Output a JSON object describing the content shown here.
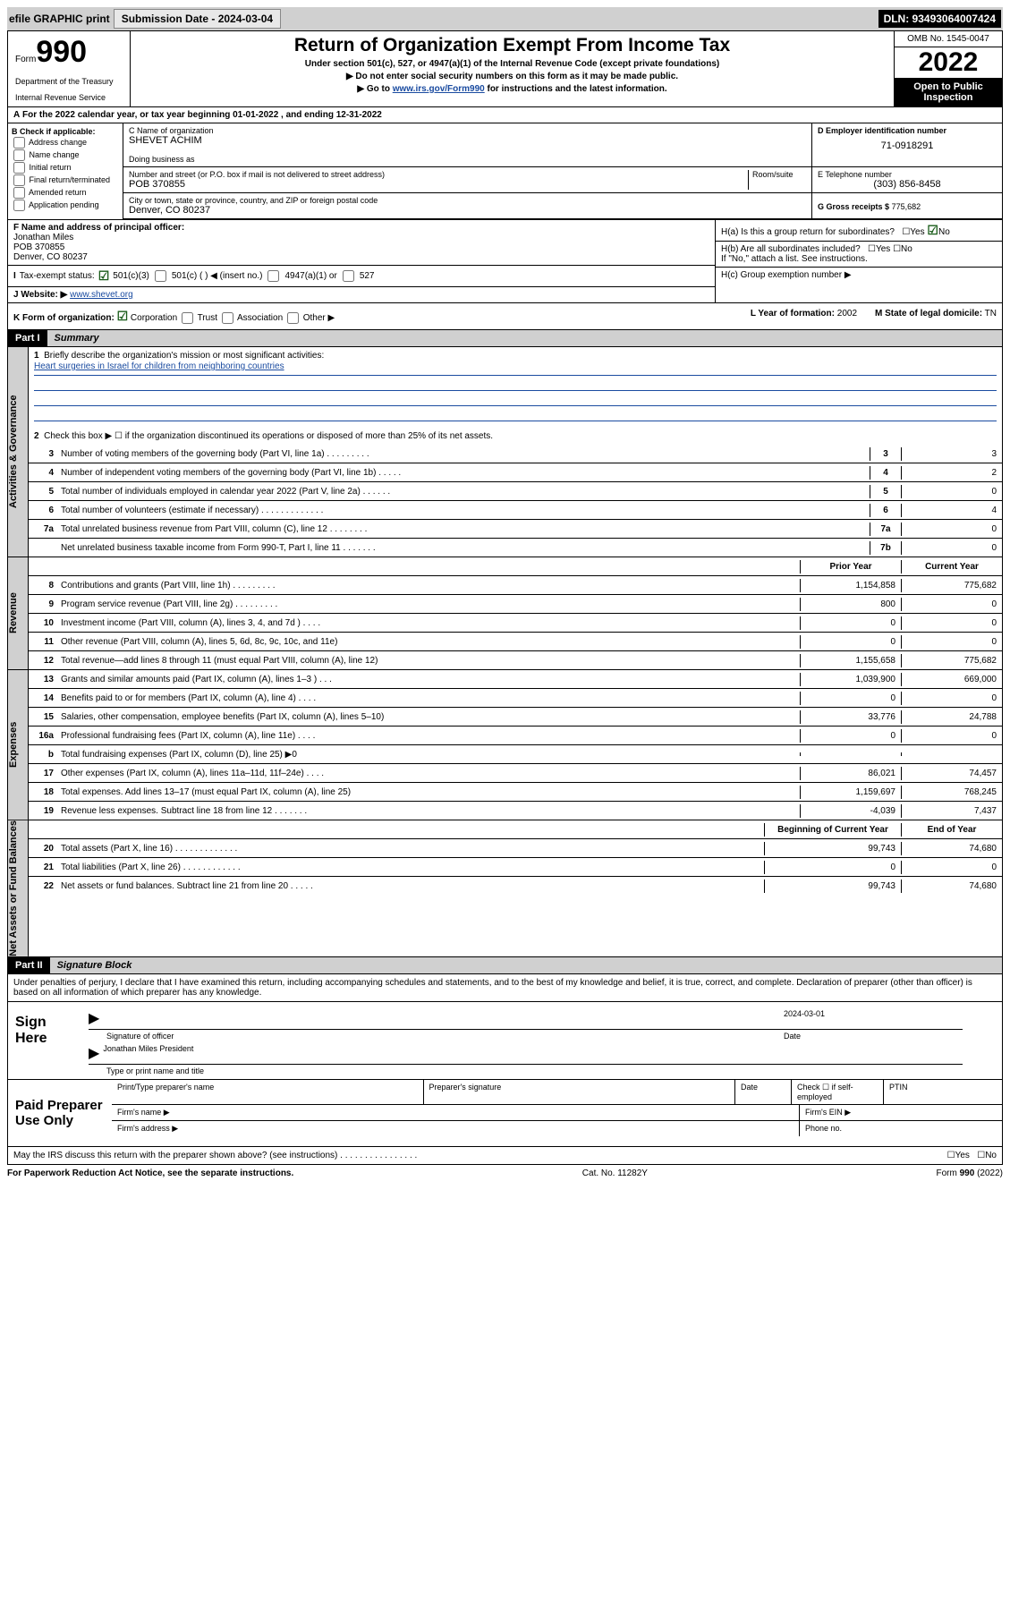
{
  "topbar": {
    "efile": "efile GRAPHIC print",
    "submission": "Submission Date - 2024-03-04",
    "dln": "DLN: 93493064007424"
  },
  "header": {
    "form_prefix": "Form",
    "form_number": "990",
    "dept": "Department of the Treasury",
    "irs": "Internal Revenue Service",
    "title": "Return of Organization Exempt From Income Tax",
    "subtitle1": "Under section 501(c), 527, or 4947(a)(1) of the Internal Revenue Code (except private foundations)",
    "subtitle2": "▶ Do not enter social security numbers on this form as it may be made public.",
    "subtitle3_prefix": "▶ Go to ",
    "subtitle3_link": "www.irs.gov/Form990",
    "subtitle3_suffix": " for instructions and the latest information.",
    "omb": "OMB No. 1545-0047",
    "year": "2022",
    "open": "Open to Public Inspection"
  },
  "row_a": "For the 2022 calendar year, or tax year beginning 01-01-2022  , and ending 12-31-2022",
  "section_b": {
    "header": "B Check if applicable:",
    "opts": [
      "Address change",
      "Name change",
      "Initial return",
      "Final return/terminated",
      "Amended return",
      "Application pending"
    ]
  },
  "section_c": {
    "name_label": "C Name of organization",
    "name": "SHEVET ACHIM",
    "dba_label": "Doing business as",
    "addr_label": "Number and street (or P.O. box if mail is not delivered to street address)",
    "suite_label": "Room/suite",
    "addr": "POB 370855",
    "city_label": "City or town, state or province, country, and ZIP or foreign postal code",
    "city": "Denver, CO  80237"
  },
  "section_d": {
    "label": "D Employer identification number",
    "val": "71-0918291"
  },
  "section_e": {
    "label": "E Telephone number",
    "val": "(303) 856-8458"
  },
  "section_g": {
    "label": "G Gross receipts $",
    "val": "775,682"
  },
  "section_f": {
    "label": "F Name and address of principal officer:",
    "name": "Jonathan Miles",
    "addr1": "POB 370855",
    "addr2": "Denver, CO  80237"
  },
  "section_h": {
    "a": "H(a)  Is this a group return for subordinates?",
    "b": "H(b)  Are all subordinates included?",
    "b_note": "If \"No,\" attach a list. See instructions.",
    "c": "H(c)  Group exemption number ▶"
  },
  "section_i": {
    "label": "Tax-exempt status:",
    "opt1": "501(c)(3)",
    "opt2": "501(c) (  ) ◀ (insert no.)",
    "opt3": "4947(a)(1) or",
    "opt4": "527"
  },
  "section_j": {
    "label": "Website: ▶",
    "val": "www.shevet.org"
  },
  "section_k": {
    "label": "K Form of organization:",
    "opts": [
      "Corporation",
      "Trust",
      "Association",
      "Other ▶"
    ]
  },
  "section_l": {
    "label": "L Year of formation:",
    "val": "2002"
  },
  "section_m": {
    "label": "M State of legal domicile:",
    "val": "TN"
  },
  "part1": {
    "header": "Part I",
    "title": "Summary",
    "q1": "Briefly describe the organization's mission or most significant activities:",
    "mission": "Heart surgeries in Israel for children from neighboring countries",
    "q2": "Check this box ▶ ☐  if the organization discontinued its operations or disposed of more than 25% of its net assets.",
    "sidebar_gov": "Activities & Governance",
    "sidebar_rev": "Revenue",
    "sidebar_exp": "Expenses",
    "sidebar_net": "Net Assets or Fund Balances",
    "col_prior": "Prior Year",
    "col_current": "Current Year",
    "col_begin": "Beginning of Current Year",
    "col_end": "End of Year",
    "lines_gov": [
      {
        "n": "3",
        "label": "Number of voting members of the governing body (Part VI, line 1a)  .  .  .  .  .  .  .  .  .",
        "box": "3",
        "val": "3"
      },
      {
        "n": "4",
        "label": "Number of independent voting members of the governing body (Part VI, line 1b)  .  .  .  .  .",
        "box": "4",
        "val": "2"
      },
      {
        "n": "5",
        "label": "Total number of individuals employed in calendar year 2022 (Part V, line 2a)  .  .  .  .  .  .",
        "box": "5",
        "val": "0"
      },
      {
        "n": "6",
        "label": "Total number of volunteers (estimate if necessary)  .  .  .  .  .  .  .  .  .  .  .  .  .",
        "box": "6",
        "val": "4"
      },
      {
        "n": "7a",
        "label": "Total unrelated business revenue from Part VIII, column (C), line 12  .  .  .  .  .  .  .  .",
        "box": "7a",
        "val": "0"
      },
      {
        "n": "",
        "label": "Net unrelated business taxable income from Form 990-T, Part I, line 11  .  .  .  .  .  .  .",
        "box": "7b",
        "val": "0"
      }
    ],
    "lines_rev": [
      {
        "n": "8",
        "label": "Contributions and grants (Part VIII, line 1h)  .  .  .  .  .  .  .  .  .",
        "prior": "1,154,858",
        "curr": "775,682"
      },
      {
        "n": "9",
        "label": "Program service revenue (Part VIII, line 2g)  .  .  .  .  .  .  .  .  .",
        "prior": "800",
        "curr": "0"
      },
      {
        "n": "10",
        "label": "Investment income (Part VIII, column (A), lines 3, 4, and 7d )  .  .  .  .",
        "prior": "0",
        "curr": "0"
      },
      {
        "n": "11",
        "label": "Other revenue (Part VIII, column (A), lines 5, 6d, 8c, 9c, 10c, and 11e)",
        "prior": "0",
        "curr": "0"
      },
      {
        "n": "12",
        "label": "Total revenue—add lines 8 through 11 (must equal Part VIII, column (A), line 12)",
        "prior": "1,155,658",
        "curr": "775,682"
      }
    ],
    "lines_exp": [
      {
        "n": "13",
        "label": "Grants and similar amounts paid (Part IX, column (A), lines 1–3 )  .  .  .",
        "prior": "1,039,900",
        "curr": "669,000"
      },
      {
        "n": "14",
        "label": "Benefits paid to or for members (Part IX, column (A), line 4)  .  .  .  .",
        "prior": "0",
        "curr": "0"
      },
      {
        "n": "15",
        "label": "Salaries, other compensation, employee benefits (Part IX, column (A), lines 5–10)",
        "prior": "33,776",
        "curr": "24,788"
      },
      {
        "n": "16a",
        "label": "Professional fundraising fees (Part IX, column (A), line 11e)  .  .  .  .",
        "prior": "0",
        "curr": "0"
      },
      {
        "n": "b",
        "label": "Total fundraising expenses (Part IX, column (D), line 25) ▶0",
        "prior": "",
        "curr": ""
      },
      {
        "n": "17",
        "label": "Other expenses (Part IX, column (A), lines 11a–11d, 11f–24e)  .  .  .  .",
        "prior": "86,021",
        "curr": "74,457"
      },
      {
        "n": "18",
        "label": "Total expenses. Add lines 13–17 (must equal Part IX, column (A), line 25)",
        "prior": "1,159,697",
        "curr": "768,245"
      },
      {
        "n": "19",
        "label": "Revenue less expenses. Subtract line 18 from line 12  .  .  .  .  .  .  .",
        "prior": "-4,039",
        "curr": "7,437"
      }
    ],
    "lines_net": [
      {
        "n": "20",
        "label": "Total assets (Part X, line 16)  .  .  .  .  .  .  .  .  .  .  .  .  .",
        "prior": "99,743",
        "curr": "74,680"
      },
      {
        "n": "21",
        "label": "Total liabilities (Part X, line 26)  .  .  .  .  .  .  .  .  .  .  .  .",
        "prior": "0",
        "curr": "0"
      },
      {
        "n": "22",
        "label": "Net assets or fund balances. Subtract line 21 from line 20  .  .  .  .  .",
        "prior": "99,743",
        "curr": "74,680"
      }
    ]
  },
  "part2": {
    "header": "Part II",
    "title": "Signature Block",
    "declaration": "Under penalties of perjury, I declare that I have examined this return, including accompanying schedules and statements, and to the best of my knowledge and belief, it is true, correct, and complete. Declaration of preparer (other than officer) is based on all information of which preparer has any knowledge.",
    "sign_label": "Sign Here",
    "sig_officer": "Signature of officer",
    "sig_date": "2024-03-01",
    "date_label": "Date",
    "sig_name": "Jonathan Miles  President",
    "sig_name_label": "Type or print name and title",
    "paid_label": "Paid Preparer Use Only",
    "prep_name": "Print/Type preparer's name",
    "prep_sig": "Preparer's signature",
    "prep_date": "Date",
    "prep_check": "Check ☐ if self-employed",
    "ptin": "PTIN",
    "firm_name": "Firm's name  ▶",
    "firm_ein": "Firm's EIN ▶",
    "firm_addr": "Firm's address ▶",
    "phone": "Phone no.",
    "discuss": "May the IRS discuss this return with the preparer shown above? (see instructions)  .  .  .  .  .  .  .  .  .  .  .  .  .  .  .  ."
  },
  "footer": {
    "left": "For Paperwork Reduction Act Notice, see the separate instructions.",
    "center": "Cat. No. 11282Y",
    "right_prefix": "Form ",
    "right_form": "990",
    "right_suffix": " (2022)"
  },
  "yes": "Yes",
  "no": "No"
}
